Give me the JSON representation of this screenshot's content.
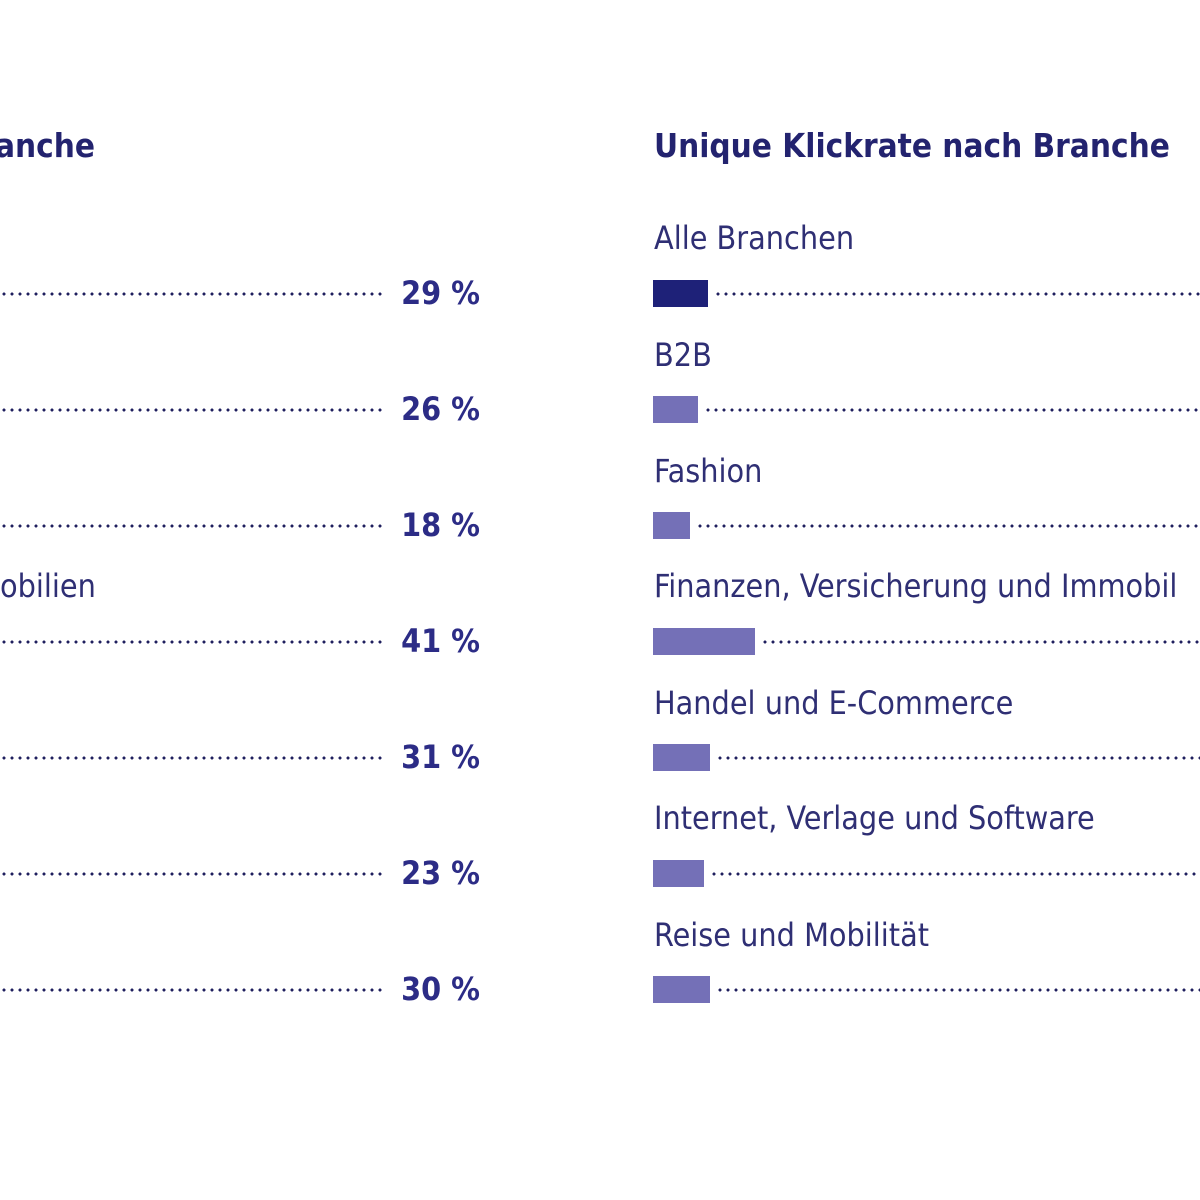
{
  "chart_data": [
    {
      "type": "bar",
      "title": "anche",
      "categories": [
        "",
        "",
        "",
        "obilien",
        "",
        "",
        ""
      ],
      "values": [
        29,
        26,
        18,
        41,
        31,
        23,
        30
      ],
      "value_labels": [
        "29 %",
        "26 %",
        "18 %",
        "41 %",
        "31 %",
        "23 %",
        "30 %"
      ],
      "unit": "%"
    },
    {
      "type": "bar",
      "title": "Unique Klickrate nach Branche",
      "categories": [
        "Alle Branchen",
        "B2B",
        "Fashion",
        "Finanzen, Versicherung und Immobil",
        "Handel und E-Commerce",
        "Internet, Verlage und Software",
        "Reise und Mobilität"
      ],
      "values": [
        null,
        null,
        null,
        null,
        null,
        null,
        null
      ],
      "bar_fraction": [
        0.28,
        0.23,
        0.19,
        0.52,
        0.29,
        0.26,
        0.29
      ],
      "highlight_index": 0
    }
  ],
  "colors": {
    "title": "#23236f",
    "label": "#2f2f74",
    "value": "#2c2c86",
    "bar_highlight": "#1e2178",
    "bar": "#7470b7",
    "dots": "#1f1f5e"
  }
}
